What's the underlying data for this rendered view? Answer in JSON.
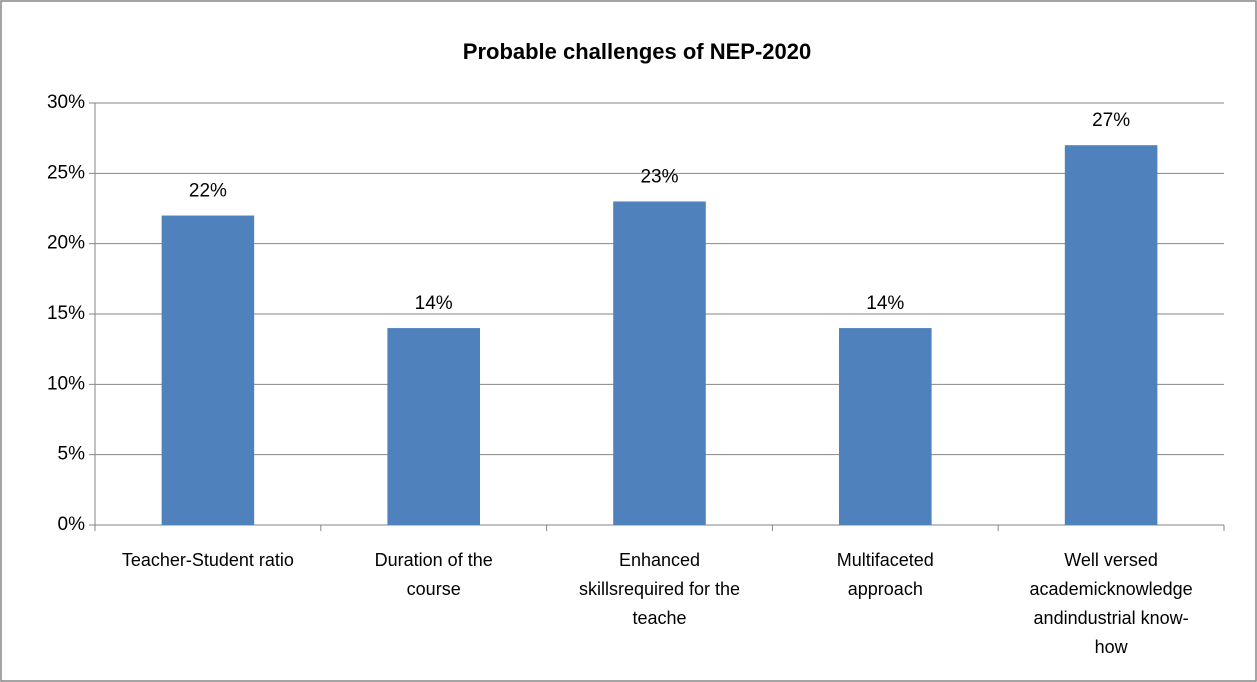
{
  "chart_data": {
    "type": "bar",
    "title": "Probable challenges of NEP-2020",
    "categories": [
      "Teacher-Student ratio",
      "Duration of the course",
      "Enhanced skillsrequired for the teache",
      "Multifaceted approach",
      "Well versed academicknowledge andindustrial know-how"
    ],
    "values": [
      22,
      14,
      23,
      14,
      27
    ],
    "value_labels": [
      "22%",
      "14%",
      "23%",
      "14%",
      "27%"
    ],
    "color": "#4f81bd",
    "ylim": [
      0,
      30
    ],
    "yticks": [
      {
        "value": 0,
        "label": "0%"
      },
      {
        "value": 5,
        "label": "5%"
      },
      {
        "value": 10,
        "label": "10%"
      },
      {
        "value": 15,
        "label": "15%"
      },
      {
        "value": 20,
        "label": "20%"
      },
      {
        "value": 25,
        "label": "25%"
      },
      {
        "value": 30,
        "label": "30%"
      }
    ],
    "grid": true
  }
}
